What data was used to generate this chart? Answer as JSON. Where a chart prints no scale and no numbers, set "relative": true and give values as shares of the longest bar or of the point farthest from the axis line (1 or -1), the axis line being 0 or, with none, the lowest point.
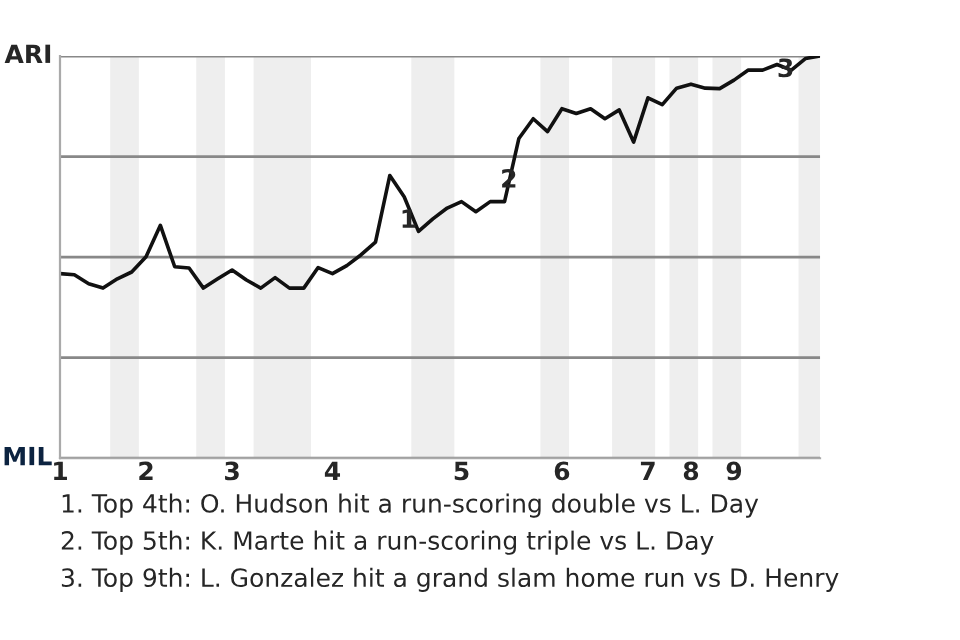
{
  "chart_data": {
    "type": "line",
    "relative": true,
    "categories": [
      "1",
      null,
      null,
      null,
      null,
      null,
      "2",
      null,
      null,
      null,
      null,
      null,
      "3",
      null,
      null,
      null,
      null,
      null,
      null,
      "4",
      null,
      null,
      null,
      null,
      null,
      null,
      null,
      null,
      "5",
      null,
      null,
      null,
      null,
      null,
      null,
      "6",
      null,
      null,
      null,
      null,
      null,
      "7",
      null,
      null,
      "8",
      null,
      null,
      "9",
      null,
      null,
      null,
      null,
      null,
      null
    ],
    "series": [
      {
        "color": "#111111",
        "values": [
          0.459,
          0.456,
          0.434,
          0.423,
          0.446,
          0.463,
          0.501,
          0.579,
          0.476,
          0.473,
          0.423,
          0.446,
          0.468,
          0.443,
          0.423,
          0.449,
          0.423,
          0.423,
          0.474,
          0.459,
          0.479,
          0.506,
          0.537,
          0.703,
          0.65,
          0.564,
          0.595,
          0.622,
          0.638,
          0.613,
          0.638,
          0.638,
          0.795,
          0.844,
          0.812,
          0.869,
          0.857,
          0.869,
          0.844,
          0.866,
          0.786,
          0.896,
          0.879,
          0.92,
          0.93,
          0.92,
          0.919,
          0.94,
          0.965,
          0.965,
          0.979,
          0.965,
          0.994,
          1.0
        ]
      }
    ],
    "grid": "y",
    "annotations": [
      "ARI",
      "MIL",
      {
        "text": "1",
        "y": 0.59
      },
      {
        "text": "2",
        "y": 0.69
      },
      {
        "text": "3",
        "y": 0.965
      },
      "1. Top 4th: O. Hudson hit a run-scoring double vs L. Day",
      "2. Top 5th: K. Marte hit a run-scoring triple vs L. Day",
      "3. Top 9th: L. Gonzalez hit a grand slam home run vs D. Henry"
    ]
  }
}
